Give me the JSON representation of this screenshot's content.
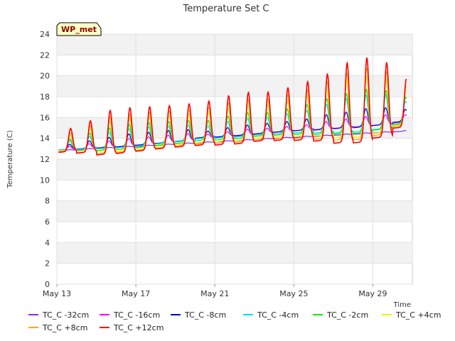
{
  "chart_data": {
    "type": "line",
    "title": "Temperature Set C",
    "xlabel": "Time",
    "ylabel": "Temperature (C)",
    "badge": "WP_met",
    "ylim": [
      0,
      24
    ],
    "yticks": [
      0,
      2,
      4,
      6,
      8,
      10,
      12,
      14,
      16,
      18,
      20,
      22,
      24
    ],
    "xlim": [
      "2000-05-13",
      "2000-05-31"
    ],
    "xticks": [
      {
        "date": "2000-05-13",
        "label": "May 13"
      },
      {
        "date": "2000-05-17",
        "label": "May 17"
      },
      {
        "date": "2000-05-21",
        "label": "May 21"
      },
      {
        "date": "2000-05-25",
        "label": "May 25"
      },
      {
        "date": "2000-05-29",
        "label": "May 29"
      }
    ],
    "grid": true,
    "legend_position": "bottom",
    "series": [
      {
        "name": "TC_C -32cm",
        "color": "#8a2be2",
        "base_start": 12.8,
        "base_end": 14.7,
        "amp": [
          0.05,
          0.05,
          0.05,
          0.05,
          0.05,
          0.05,
          0.05,
          0.05,
          0.05,
          0.05,
          0.05,
          0.05,
          0.05,
          0.05,
          0.05,
          0.05,
          0.05,
          0.05
        ]
      },
      {
        "name": "TC_C -16cm",
        "color": "#ff00ff",
        "base_start": 12.9,
        "base_end": 15.8,
        "amp": [
          0.3,
          0.4,
          0.5,
          0.6,
          0.6,
          0.6,
          0.6,
          0.3,
          0.4,
          0.5,
          0.4,
          0.4,
          0.4,
          0.6,
          0.7,
          0.8,
          0.8,
          0.6
        ]
      },
      {
        "name": "TC_C -8cm",
        "color": "#0000cd",
        "base_start": 13.0,
        "base_end": 16.0,
        "amp": [
          0.4,
          0.6,
          0.8,
          1.0,
          1.0,
          1.0,
          0.9,
          0.5,
          0.7,
          0.8,
          0.8,
          0.8,
          0.9,
          1.2,
          1.3,
          1.5,
          1.4,
          1.0
        ]
      },
      {
        "name": "TC_C -4cm",
        "color": "#00e5ee",
        "base_start": 13.1,
        "base_end": 16.1,
        "amp": [
          0.7,
          1.0,
          1.3,
          1.5,
          1.5,
          1.4,
          1.3,
          1.0,
          1.3,
          1.5,
          1.4,
          1.6,
          1.8,
          2.3,
          2.8,
          3.0,
          2.8,
          1.8
        ]
      },
      {
        "name": "TC_C -2cm",
        "color": "#00ee00",
        "base_start": 13.1,
        "base_end": 16.2,
        "amp": [
          0.9,
          1.4,
          1.8,
          2.0,
          2.0,
          1.9,
          1.8,
          1.6,
          1.9,
          2.1,
          1.9,
          2.1,
          2.4,
          2.9,
          3.3,
          3.6,
          3.2,
          2.2
        ]
      },
      {
        "name": "TC_C +4cm",
        "color": "#f0f000",
        "base_start": 13.2,
        "base_end": 16.3,
        "amp": [
          1.2,
          1.8,
          2.4,
          2.6,
          2.6,
          2.5,
          2.4,
          2.5,
          2.7,
          2.9,
          2.7,
          2.9,
          3.3,
          3.9,
          4.7,
          5.0,
          4.4,
          2.8
        ]
      },
      {
        "name": "TC_C +8cm",
        "color": "#ffa500",
        "base_start": 13.2,
        "base_end": 16.4,
        "amp": [
          1.5,
          2.2,
          3.0,
          3.1,
          3.1,
          3.0,
          2.9,
          3.0,
          3.3,
          3.5,
          3.3,
          3.6,
          4.0,
          4.7,
          5.5,
          5.9,
          5.2,
          3.3
        ]
      },
      {
        "name": "TC_C +12cm",
        "color": "#ff0000",
        "base_start": 13.3,
        "base_end": 16.5,
        "amp": [
          1.9,
          2.6,
          3.6,
          3.7,
          3.6,
          3.5,
          3.5,
          3.6,
          4.0,
          4.2,
          4.0,
          4.3,
          4.8,
          5.5,
          6.6,
          7.0,
          6.2,
          4.0
        ]
      }
    ]
  }
}
